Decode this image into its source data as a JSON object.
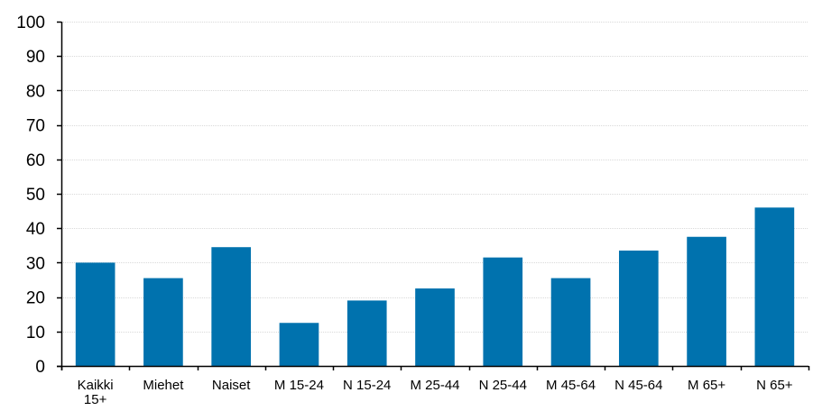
{
  "chart_data": {
    "type": "bar",
    "categories": [
      [
        "Kaikki",
        "15+"
      ],
      [
        "Miehet"
      ],
      [
        "Naiset"
      ],
      [
        "M 15-24"
      ],
      [
        "N 15-24"
      ],
      [
        "M 25-44"
      ],
      [
        "N 25-44"
      ],
      [
        "M 45-64"
      ],
      [
        "N 45-64"
      ],
      [
        "M 65+"
      ],
      [
        "N 65+"
      ]
    ],
    "values": [
      30,
      25.5,
      34.5,
      12.5,
      19,
      22.5,
      31.5,
      25.5,
      33.5,
      37.5,
      46
    ],
    "ylim": [
      0,
      100
    ],
    "yticks": [
      0,
      10,
      20,
      30,
      40,
      50,
      60,
      70,
      80,
      90,
      100
    ],
    "grid": true,
    "bar_color": "#0072AE",
    "grid_color": "#D9D9D9",
    "axis_color": "#000000"
  }
}
